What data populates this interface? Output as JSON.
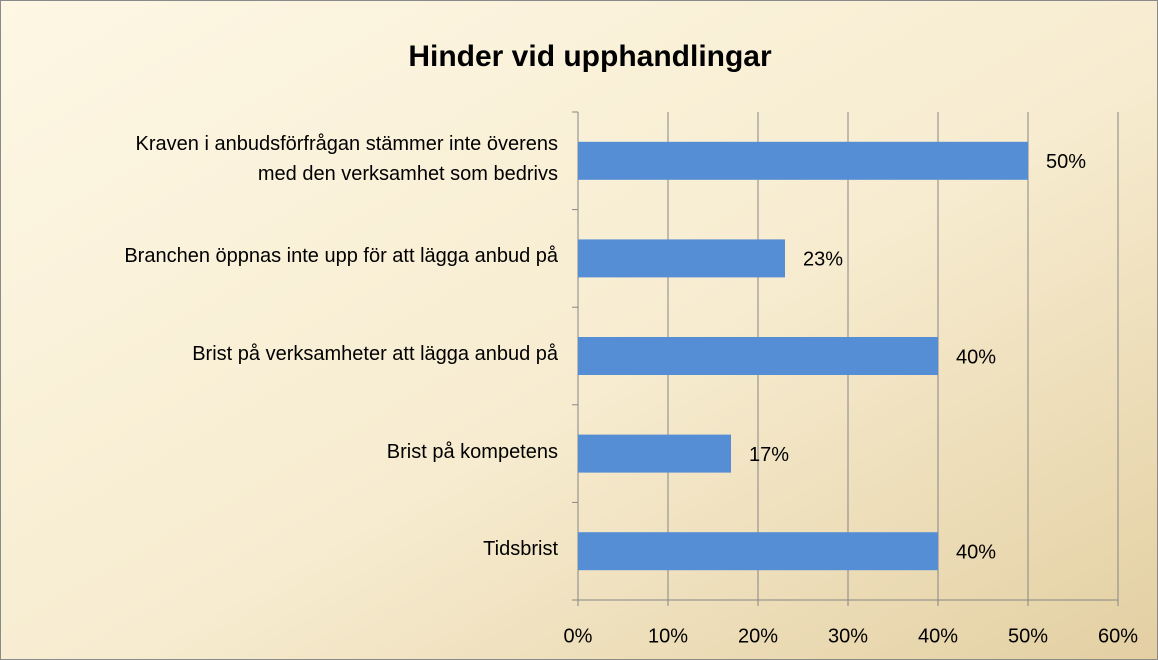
{
  "chart_data": {
    "type": "bar",
    "orientation": "horizontal",
    "title": "Hinder vid upphandlingar",
    "categories": [
      "Kraven i anbudsförfrågan stämmer inte överens\nmed den verksamhet som bedrivs",
      "Branchen öppnas inte upp för att lägga anbud på",
      "Brist på verksamheter att lägga anbud på",
      "Brist på kompetens",
      "Tidsbrist"
    ],
    "values": [
      50,
      23,
      40,
      17,
      40
    ],
    "value_labels": [
      "50%",
      "23%",
      "40%",
      "17%",
      "40%"
    ],
    "color": "#558ed5",
    "xlim": [
      0,
      60
    ],
    "xticks": [
      {
        "value": 0,
        "label": "0%"
      },
      {
        "value": 10,
        "label": "10%"
      },
      {
        "value": 20,
        "label": "20%"
      },
      {
        "value": 30,
        "label": "30%"
      },
      {
        "value": 40,
        "label": "40%"
      },
      {
        "value": 50,
        "label": "50%"
      },
      {
        "value": 60,
        "label": "60%"
      }
    ],
    "grid": true
  }
}
